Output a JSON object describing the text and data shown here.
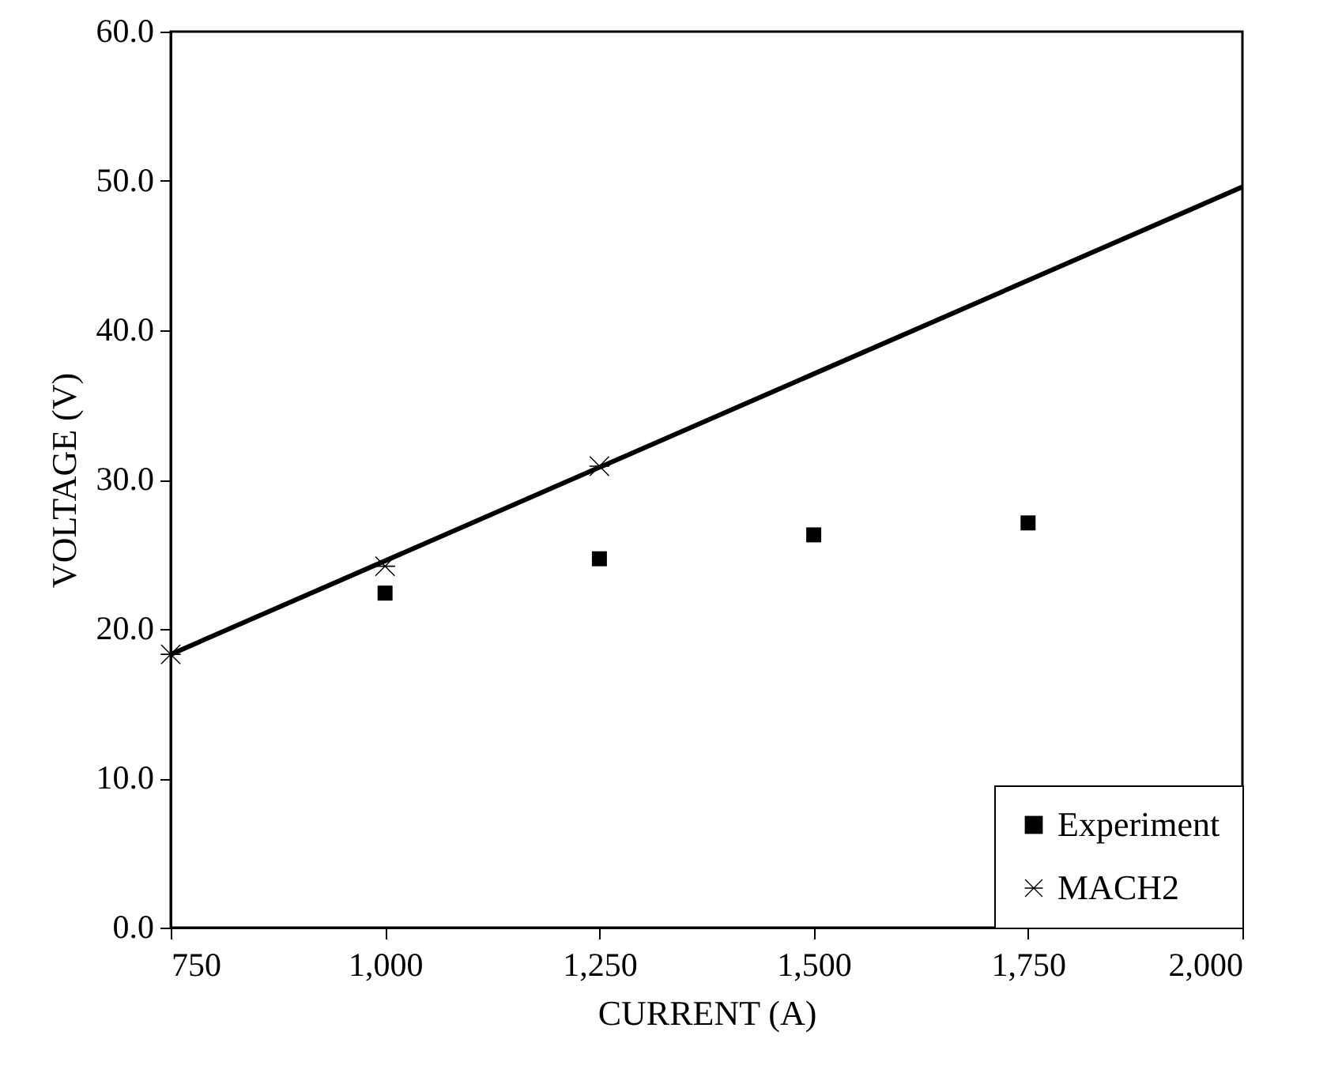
{
  "chart_data": {
    "type": "scatter",
    "xlabel": "CURRENT (A)",
    "ylabel": "VOLTAGE (V)",
    "xlim": [
      750,
      2000
    ],
    "ylim": [
      0,
      60
    ],
    "xticks": [
      750,
      {
        "value": 1000,
        "label": "1,000"
      },
      {
        "value": 1250,
        "label": "1,250"
      },
      {
        "value": 1500,
        "label": "1,500"
      },
      {
        "value": 1750,
        "label": "1,750"
      },
      {
        "value": 2000,
        "label": "2,000"
      }
    ],
    "yticks": [
      {
        "value": 0,
        "label": "0.0"
      },
      {
        "value": 10,
        "label": "10.0"
      },
      {
        "value": 20,
        "label": "20.0"
      },
      {
        "value": 30,
        "label": "30.0"
      },
      {
        "value": 40,
        "label": "40.0"
      },
      {
        "value": 50,
        "label": "50.0"
      },
      {
        "value": 60,
        "label": "60.0"
      }
    ],
    "grid": false,
    "legend": "bottom right",
    "series": [
      {
        "type": "line",
        "color": "#000000",
        "x": [
          750,
          2000
        ],
        "values": [
          18.3,
          49.6
        ],
        "line_style": "solid"
      },
      {
        "name": "Experiment",
        "color": "#000000",
        "marker": "square",
        "x": [
          1000,
          1250,
          1500,
          1750
        ],
        "values": [
          22.4,
          24.7,
          26.3,
          27.1
        ]
      },
      {
        "name": "MACH2",
        "color": "#000000",
        "marker": "cross",
        "x": [
          750,
          1000,
          1250
        ],
        "values": [
          18.3,
          24.2,
          30.9
        ]
      }
    ]
  }
}
